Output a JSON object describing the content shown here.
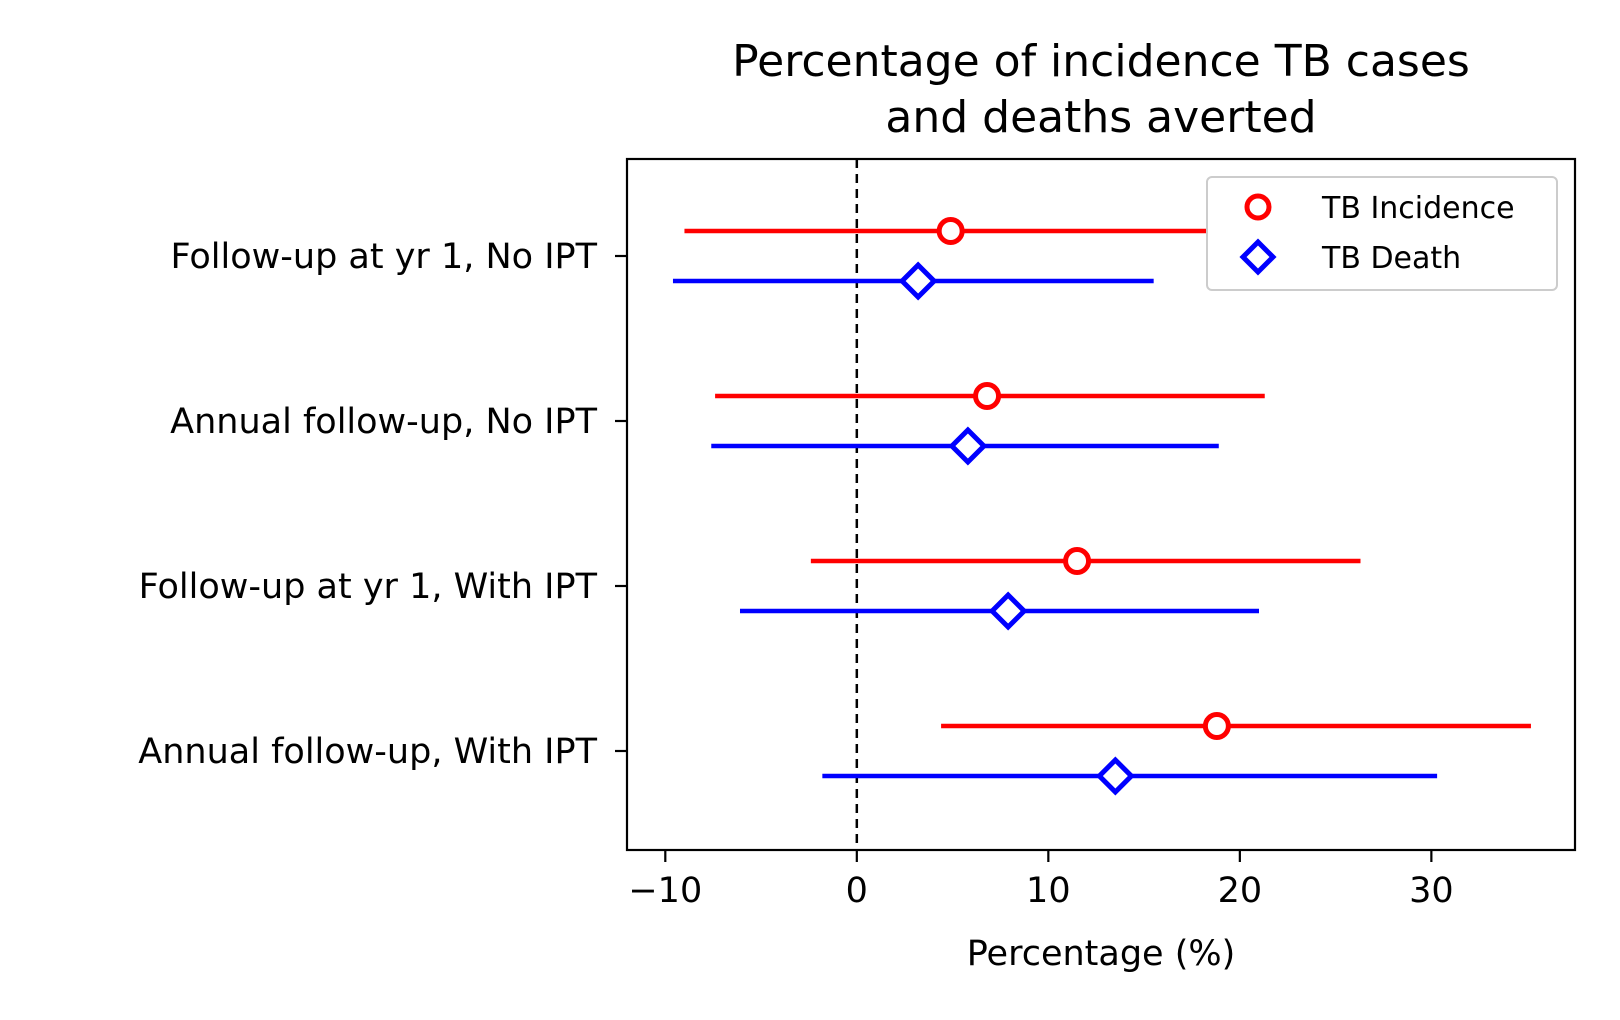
{
  "chart_data": {
    "type": "scatter",
    "title": [
      "Percentage of incidence TB cases",
      "and deaths averted"
    ],
    "xlabel": "Percentage (%)",
    "ylabel": "",
    "xlim": [
      -12,
      37.5
    ],
    "xticks": [
      -10,
      0,
      10,
      20,
      30
    ],
    "xtick_labels": [
      "−10",
      "0",
      "10",
      "20",
      "30"
    ],
    "reference_line": {
      "x": 0,
      "style": "dashed",
      "color": "#000000"
    },
    "categories": [
      "Follow-up at yr 1, No IPT",
      "Annual follow-up, No IPT",
      "Follow-up at yr 1, With IPT",
      "Annual follow-up, With IPT"
    ],
    "legend": {
      "placement": "top-right"
    },
    "grid": false,
    "series": [
      {
        "name": "TB Incidence",
        "color": "#ff0000",
        "marker": "circle",
        "points": [
          {
            "value": 4.9,
            "low": -9.0,
            "high": 18.5
          },
          {
            "value": 6.8,
            "low": -7.4,
            "high": 21.3
          },
          {
            "value": 11.5,
            "low": -2.4,
            "high": 26.3
          },
          {
            "value": 18.8,
            "low": 4.4,
            "high": 35.2
          }
        ]
      },
      {
        "name": "TB Death",
        "color": "#0000ff",
        "marker": "diamond",
        "points": [
          {
            "value": 3.2,
            "low": -9.6,
            "high": 15.5
          },
          {
            "value": 5.8,
            "low": -7.6,
            "high": 18.9
          },
          {
            "value": 7.9,
            "low": -6.1,
            "high": 21.0
          },
          {
            "value": 13.5,
            "low": -1.8,
            "high": 30.3
          }
        ]
      }
    ]
  }
}
